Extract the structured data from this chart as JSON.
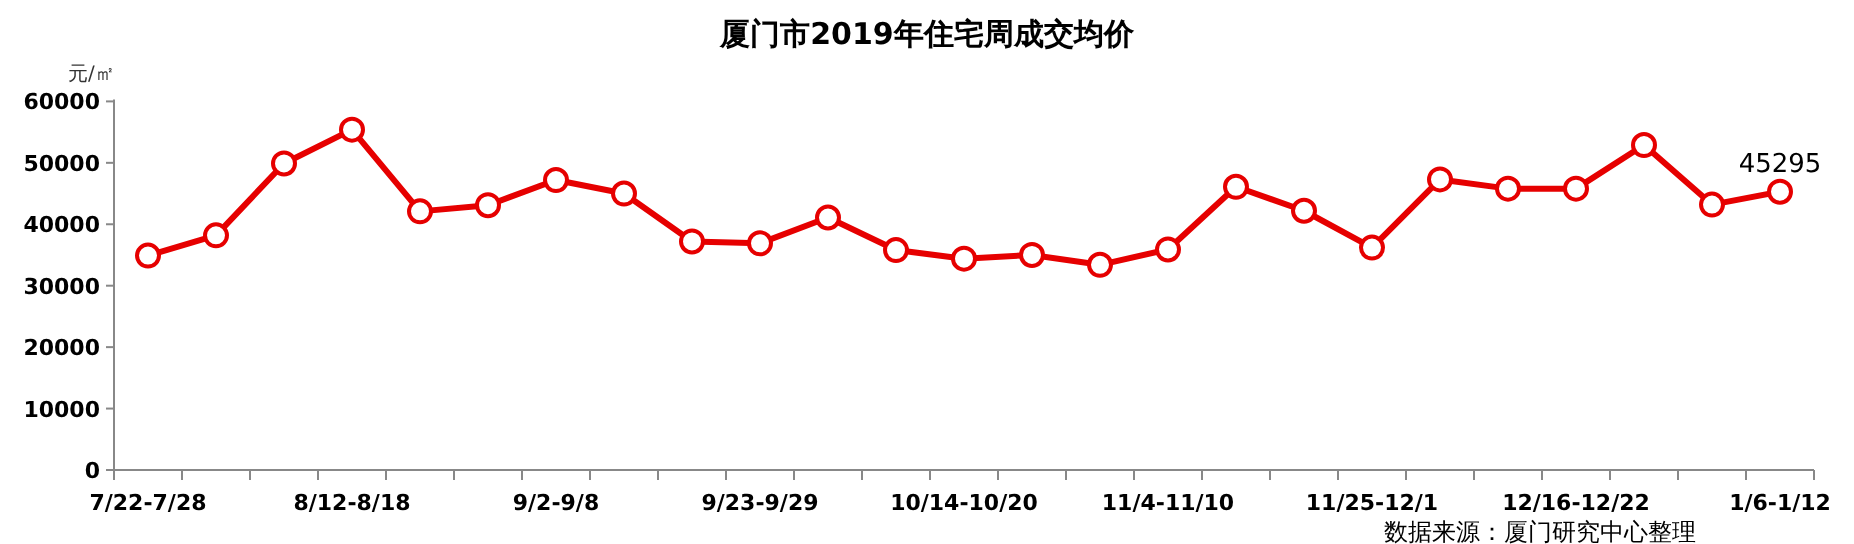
{
  "chart_data": {
    "type": "line",
    "title": "厦门市2019年住宅周成交均价",
    "ylabel": "元/㎡",
    "categories": [
      "7/22-7/28",
      null,
      null,
      "8/12-8/18",
      null,
      null,
      "9/2-9/8",
      null,
      null,
      "9/23-9/29",
      null,
      null,
      "10/14-10/20",
      null,
      null,
      "11/4-11/10",
      null,
      null,
      "11/25-12/1",
      null,
      null,
      "12/16-12/22",
      null,
      null,
      "1/6-1/12"
    ],
    "series": [
      {
        "color": "#e60000",
        "values": [
          34900,
          38200,
          49900,
          55400,
          42100,
          43100,
          47200,
          45000,
          37200,
          36900,
          41100,
          35800,
          34400,
          35000,
          33400,
          35900,
          46100,
          42200,
          36200,
          47300,
          45800,
          45800,
          52900,
          43200,
          45295
        ],
        "value_labels": [
          null,
          null,
          null,
          null,
          null,
          null,
          null,
          null,
          null,
          null,
          null,
          null,
          null,
          null,
          null,
          null,
          null,
          null,
          null,
          null,
          null,
          null,
          null,
          null,
          "45295"
        ]
      }
    ],
    "ylim": [
      0,
      60000
    ],
    "yticks": [
      0,
      10000,
      20000,
      30000,
      40000,
      50000,
      60000
    ],
    "marker": "circle",
    "line_style": "solid",
    "annotations": [
      "数据来源：厦门研究中心整理"
    ]
  }
}
